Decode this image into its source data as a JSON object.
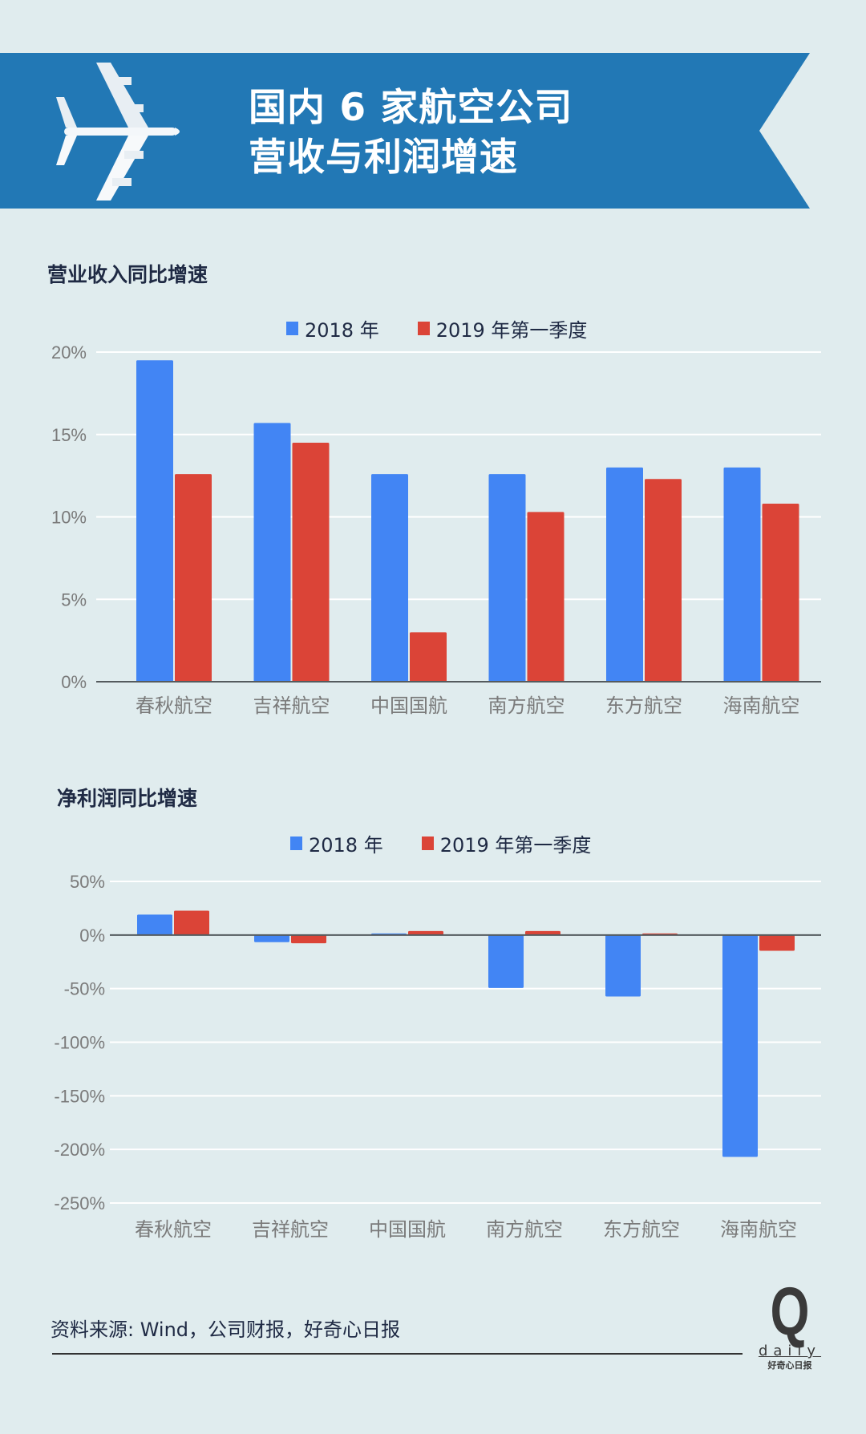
{
  "header": {
    "title_line1": "国内 6 家航空公司",
    "title_line2": "营收与利润增速",
    "banner_color": "#2278b5",
    "icon": "airplane-icon"
  },
  "colors": {
    "background": "#e0ecee",
    "series_2018": "#4285f4",
    "series_2019q1": "#db4437"
  },
  "chart_data": [
    {
      "type": "bar",
      "title": "营业收入同比增速",
      "categories": [
        "春秋航空",
        "吉祥航空",
        "中国国航",
        "南方航空",
        "东方航空",
        "海南航空"
      ],
      "series": [
        {
          "name": "2018 年",
          "values": [
            19.5,
            15.7,
            12.6,
            12.6,
            13.0,
            13.0
          ]
        },
        {
          "name": "2019 年第一季度",
          "values": [
            12.6,
            14.5,
            3.0,
            10.3,
            12.3,
            10.8
          ]
        }
      ],
      "ylim": [
        0,
        20
      ],
      "yticks": [
        "0%",
        "5%",
        "10%",
        "15%",
        "20%"
      ],
      "ytick_values": [
        0,
        5,
        10,
        15,
        20
      ],
      "unit": "%",
      "grid": true,
      "legend": "top-center"
    },
    {
      "type": "bar",
      "title": "净利润同比增速",
      "categories": [
        "春秋航空",
        "吉祥航空",
        "中国国航",
        "南方航空",
        "东方航空",
        "海南航空"
      ],
      "series": [
        {
          "name": "2018 年",
          "values": [
            19,
            -6.7,
            1.5,
            -49.4,
            -57.4,
            -207
          ]
        },
        {
          "name": "2019 年第一季度",
          "values": [
            22.7,
            -7.7,
            3.7,
            3.7,
            1.5,
            -14.7
          ]
        }
      ],
      "ylim": [
        -250,
        50
      ],
      "yticks": [
        "-250%",
        "-200%",
        "-150%",
        "-100%",
        "-50%",
        "0%",
        "50%"
      ],
      "ytick_values": [
        -250,
        -200,
        -150,
        -100,
        -50,
        0,
        50
      ],
      "unit": "%",
      "grid": true,
      "legend": "top-center"
    }
  ],
  "footer": {
    "source": "资料来源: Wind，公司财报，好奇心日报",
    "logo_letter": "Q",
    "logo_word": "daily",
    "logo_cn": "好奇心日报"
  }
}
